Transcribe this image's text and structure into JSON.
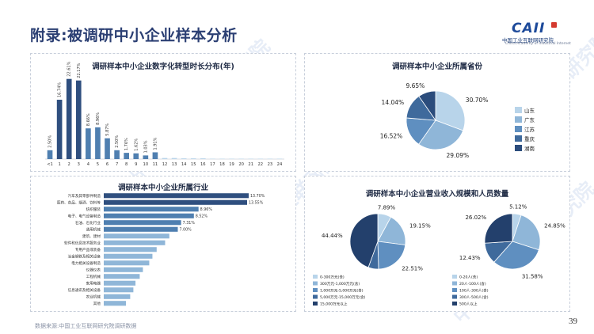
{
  "page": {
    "title": "附录:被调研中小企业样本分析",
    "source": "数据来源:中国工业互联网研究院调研数据",
    "page_number": "39",
    "logo_mark": "CAII",
    "logo_cn": "中国工业互联网研究院",
    "logo_en": "China Academy of Industrial Internet",
    "watermark": "中国工业互联网研究院"
  },
  "colors": {
    "title": "#2b3f73",
    "dark": "#2f4f7f",
    "mid": "#4f7fb0",
    "light": "#8fb6d8",
    "pale": "#b8d4ea",
    "deep": "#1f3a66"
  },
  "chart_data": [
    {
      "id": "years",
      "type": "bar",
      "title": "调研样本中小企业数字化转型时长分布(年)",
      "categories": [
        "<1",
        "1",
        "2",
        "3",
        "4",
        "5",
        "6",
        "7",
        "8",
        "9",
        "10",
        "11",
        "12",
        "13",
        "14",
        "15",
        "16",
        "17",
        "18",
        "19",
        "20",
        "21",
        "22",
        "23",
        "24"
      ],
      "values": [
        2.5,
        16.74,
        22.61,
        22.17,
        8.66,
        8.96,
        5.87,
        2.5,
        1.76,
        1.62,
        1.03,
        1.91,
        0.3,
        0.3,
        0.2,
        0.2,
        0.2,
        0.1,
        0.1,
        0.1,
        0.1,
        0.1,
        0.1,
        0.1,
        0.1
      ],
      "labels": [
        "2.50%",
        "16.74%",
        "22.61%",
        "22.17%",
        "8.66%",
        "8.96%",
        "5.87%",
        "2.50%",
        "1.76%",
        "1.62%",
        "1.03%",
        "1.91%",
        "",
        "",
        "",
        "",
        "",
        "",
        "",
        "",
        "",
        "",
        "",
        "",
        ""
      ],
      "ylim": [
        0,
        25
      ]
    },
    {
      "id": "province",
      "type": "pie",
      "title": "调研样本中小企业所属省份",
      "labels": [
        "山东",
        "广东",
        "江苏",
        "重庆",
        "湖南"
      ],
      "values": [
        30.7,
        29.09,
        16.52,
        14.04,
        9.65
      ],
      "value_labels": [
        "30.70%",
        "29.09%",
        "16.52%",
        "14.04%",
        "9.65%"
      ],
      "colors": [
        "#b8d4ea",
        "#8fb6d8",
        "#5f8fc0",
        "#3f6a9c",
        "#2b4c7c"
      ],
      "legend": "right"
    },
    {
      "id": "industry",
      "type": "bar",
      "orientation": "horizontal",
      "title": "调研样本中小企业所属行业",
      "categories": [
        "汽车及其零部件制造",
        "医药、食品、烟酒、饮料等",
        "纺织服装",
        "电子、电气设备制造",
        "石油、石化行业",
        "通用机械",
        "建筑、建材",
        "软件和信息技术服务业",
        "专用产品或装备",
        "冶金钢铁及相关设备",
        "电力相关设备制造",
        "仪器仪表",
        "工程机械",
        "家用电器",
        "信息通讯及相关设备",
        "农业机械",
        "其他"
      ],
      "values": [
        13.7,
        13.55,
        8.96,
        8.52,
        7.31,
        7.0,
        6.2,
        5.8,
        5.0,
        4.6,
        4.3,
        3.7,
        3.4,
        3.0,
        2.8,
        2.5,
        2.1
      ],
      "labels": [
        "13.70%",
        "13.55%",
        "8.96%",
        "8.52%",
        "7.31%",
        "7.00%",
        "",
        "",
        "",
        "",
        "",
        "",
        "",
        "",
        "",
        "",
        ""
      ]
    },
    {
      "id": "revenue",
      "type": "pie",
      "title": "调研样本中小企业营业收入规模和人员数量",
      "labels": [
        "0-300万元(含)",
        "300万元-1,000万元(含)",
        "1,000万元-5,000万元(含)",
        "5,000万元-15,000万元(含)",
        "15,000万元以上"
      ],
      "values": [
        7.89,
        19.15,
        22.51,
        6.01,
        44.44
      ],
      "value_labels": [
        "7.89%",
        "19.15%",
        "22.51%",
        "",
        "44.44%"
      ],
      "colors": [
        "#b8d4ea",
        "#8fb6d8",
        "#5f8fc0",
        "#3f6a9c",
        "#23406c"
      ],
      "legend": "bottom-left"
    },
    {
      "id": "staff",
      "type": "pie",
      "title": "",
      "labels": [
        "0-20人(含)",
        "20人-100人(含)",
        "100人-300人(含)",
        "300人-500人(含)",
        "500人以上"
      ],
      "values": [
        5.12,
        24.85,
        31.58,
        12.43,
        26.02
      ],
      "value_labels": [
        "5.12%",
        "24.85%",
        "31.58%",
        "12.43%",
        "26.02%"
      ],
      "colors": [
        "#b8d4ea",
        "#8fb6d8",
        "#5f8fc0",
        "#3f6a9c",
        "#23406c"
      ],
      "legend": "bottom-left"
    }
  ]
}
